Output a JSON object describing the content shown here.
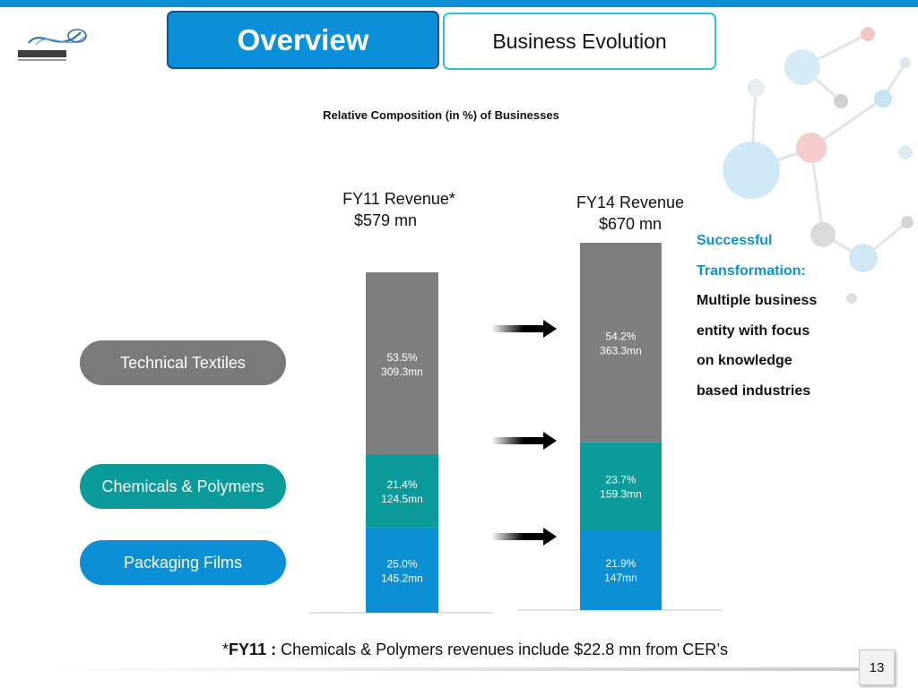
{
  "tabs": {
    "active": "Overview",
    "inactive": "Business Evolution"
  },
  "slide": {
    "page_number": "13"
  },
  "chart_data": {
    "type": "bar",
    "stacked": true,
    "title": "Relative Composition (in %) of Businesses",
    "categories": [
      "FY11 Revenue*",
      "FY14 Revenue"
    ],
    "category_totals": [
      "$579 mn",
      "$670 mn"
    ],
    "series": [
      {
        "name": "Packaging Films",
        "color": "#0d8fd6",
        "percent": [
          25.0,
          21.9
        ],
        "values_mn": [
          145.2,
          147
        ],
        "labels": [
          [
            "25.0%",
            "145.2mn"
          ],
          [
            "21.9%",
            "147mn"
          ]
        ]
      },
      {
        "name": "Chemicals & Polymers",
        "color": "#0b9b9b",
        "percent": [
          21.4,
          23.7
        ],
        "values_mn": [
          124.5,
          159.3
        ],
        "labels": [
          [
            "21.4%",
            "124.5mn"
          ],
          [
            "23.7%",
            "159.3mn"
          ]
        ]
      },
      {
        "name": "Technical Textiles",
        "color": "#7f7f7f",
        "percent": [
          53.5,
          54.2
        ],
        "values_mn": [
          309.3,
          363.3
        ],
        "labels": [
          [
            "53.5%",
            "309.3mn"
          ],
          [
            "54.2%",
            "363.3mn"
          ]
        ]
      }
    ],
    "legend_position": "left",
    "grid": false
  },
  "side_note": {
    "highlight_lines": [
      "Successful",
      "Transformation:"
    ],
    "body_lines": [
      "Multiple business",
      "entity with focus",
      "on knowledge",
      "based industries"
    ]
  },
  "footnote": {
    "prefix": "*",
    "bold": "FY11 :",
    "text": " Chemicals & Polymers revenues include $22.8 mn from CER’s"
  }
}
